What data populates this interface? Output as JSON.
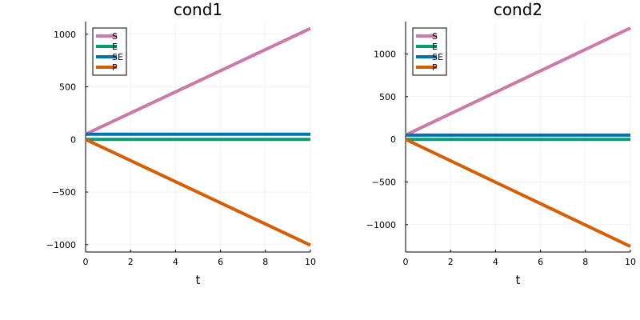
{
  "chart_data": [
    {
      "type": "line",
      "title": "cond1",
      "xlabel": "t",
      "ylabel": "",
      "xlim": [
        0,
        10
      ],
      "ylim": [
        -1070,
        1120
      ],
      "xticks": [
        0,
        2,
        4,
        6,
        8,
        10
      ],
      "xtick_labels": [
        "0",
        "2",
        "4",
        "6",
        "8",
        "10"
      ],
      "yticks": [
        -1000,
        -500,
        0,
        500,
        1000
      ],
      "ytick_labels": [
        "−1000",
        "−500",
        "0",
        "500",
        "1000"
      ],
      "grid": true,
      "legend_position": "top-left",
      "series": [
        {
          "name": "S",
          "color": "#cc79a7",
          "x": [
            0,
            10
          ],
          "y": [
            50,
            1055
          ]
        },
        {
          "name": "E",
          "color": "#009e73",
          "x": [
            0,
            10
          ],
          "y": [
            0,
            0
          ]
        },
        {
          "name": "SE",
          "color": "#0072b2",
          "x": [
            0,
            10
          ],
          "y": [
            50,
            50
          ]
        },
        {
          "name": "P",
          "color": "#d55e00",
          "x": [
            0,
            10
          ],
          "y": [
            0,
            -1005
          ]
        }
      ]
    },
    {
      "type": "line",
      "title": "cond2",
      "xlabel": "t",
      "ylabel": "",
      "xlim": [
        0,
        10
      ],
      "ylim": [
        -1320,
        1380
      ],
      "xticks": [
        0,
        2,
        4,
        6,
        8,
        10
      ],
      "xtick_labels": [
        "0",
        "2",
        "4",
        "6",
        "8",
        "10"
      ],
      "yticks": [
        -1000,
        -500,
        0,
        500,
        1000
      ],
      "ytick_labels": [
        "−1000",
        "−500",
        "0",
        "500",
        "1000"
      ],
      "grid": true,
      "legend_position": "top-left",
      "series": [
        {
          "name": "S",
          "color": "#cc79a7",
          "x": [
            0,
            10
          ],
          "y": [
            50,
            1305
          ]
        },
        {
          "name": "E",
          "color": "#009e73",
          "x": [
            0,
            10
          ],
          "y": [
            0,
            0
          ]
        },
        {
          "name": "SE",
          "color": "#0072b2",
          "x": [
            0,
            10
          ],
          "y": [
            50,
            50
          ]
        },
        {
          "name": "P",
          "color": "#d55e00",
          "x": [
            0,
            10
          ],
          "y": [
            0,
            -1255
          ]
        }
      ]
    }
  ]
}
